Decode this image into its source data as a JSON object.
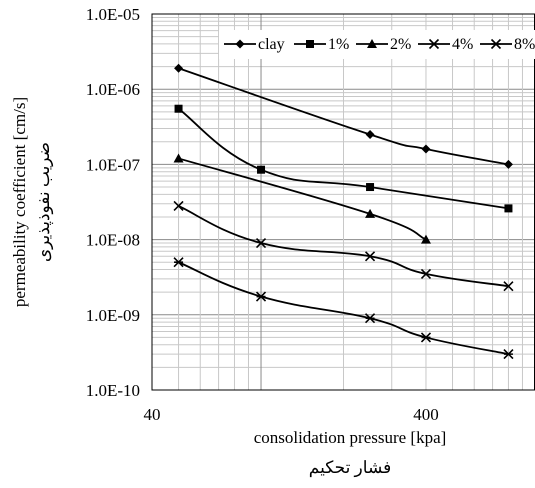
{
  "chart_data": {
    "type": "line",
    "xlabel": "consolidation pressure [kpa]",
    "xlabel_alt": "فشار تحکیم",
    "ylabel": "permeability coefficient [cm/s]",
    "ylabel_alt": "ضریب نفوذپذیری",
    "x_scale": "log",
    "y_scale": "log",
    "xlim": [
      40,
      1000
    ],
    "ylim": [
      1e-10,
      1e-05
    ],
    "x_tick_labels": [
      {
        "value": 40,
        "label": "40"
      },
      {
        "value": 400,
        "label": "400"
      }
    ],
    "y_tick_labels": [
      {
        "value": 1e-10,
        "label": "1.0E-10"
      },
      {
        "value": 1e-09,
        "label": "1.0E-09"
      },
      {
        "value": 1e-08,
        "label": "1.0E-08"
      },
      {
        "value": 1e-07,
        "label": "1.0E-07"
      },
      {
        "value": 1e-06,
        "label": "1.0E-06"
      },
      {
        "value": 1e-05,
        "label": "1.0E-05"
      }
    ],
    "grid": true,
    "legend_position": "top-right",
    "series": [
      {
        "name": "clay",
        "marker": "diamond",
        "x": [
          50,
          250,
          400,
          800
        ],
        "y": [
          1.9e-06,
          2.5e-07,
          1.6e-07,
          1e-07
        ]
      },
      {
        "name": "1%",
        "marker": "square",
        "x": [
          50,
          100,
          250,
          800
        ],
        "y": [
          5.5e-07,
          8.5e-08,
          5e-08,
          2.6e-08
        ]
      },
      {
        "name": "2%",
        "marker": "triangle",
        "x": [
          50,
          250,
          400
        ],
        "y": [
          1.2e-07,
          2.2e-08,
          1e-08
        ]
      },
      {
        "name": "4%",
        "marker": "x",
        "x": [
          50,
          100,
          250,
          400,
          800
        ],
        "y": [
          2.8e-08,
          9e-09,
          6e-09,
          3.5e-09,
          2.4e-09
        ]
      },
      {
        "name": "8%",
        "marker": "star",
        "x": [
          50,
          100,
          250,
          400,
          800
        ],
        "y": [
          5e-09,
          1.75e-09,
          9e-10,
          5e-10,
          3e-10
        ]
      }
    ]
  }
}
